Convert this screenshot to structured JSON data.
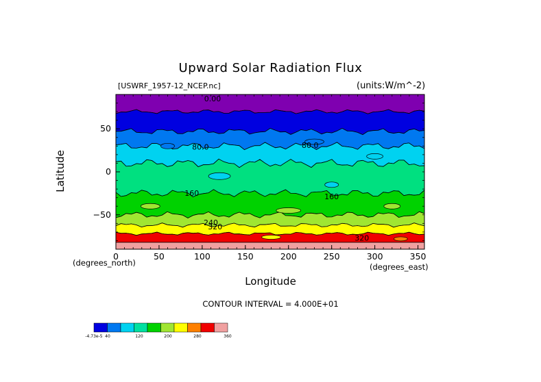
{
  "chart_data": {
    "type": "heatmap",
    "title": "Upward Solar Radiation Flux",
    "dataset_label": "[USWRF_1957-12_NCEP.nc]",
    "units_label": "(units:W/m^-2)",
    "xlabel": "Longitude",
    "ylabel": "Latitude",
    "x_units_label": "(degrees_east)",
    "y_units_label": "(degrees_north)",
    "xlim": [
      0,
      357.5
    ],
    "ylim": [
      -90,
      90
    ],
    "x_ticks": [
      0,
      50,
      100,
      150,
      200,
      250,
      300,
      350
    ],
    "y_ticks": [
      50,
      0,
      -50
    ],
    "y_tick_labels": [
      "50",
      "0",
      "−50"
    ],
    "contour_interval_text": "CONTOUR INTERVAL = 4.000E+01",
    "contour_labels": [
      "0.00",
      "80.0",
      "80.0",
      "160",
      "160",
      "240",
      "320",
      "320"
    ],
    "bands": [
      {
        "lat_min": 70,
        "lat_max": 90,
        "value_range": "0.00 and below",
        "color": "#7f00b0"
      },
      {
        "lat_min": 47,
        "lat_max": 70,
        "value_range": "-4.73e-5 to 40",
        "color": "#0000e0"
      },
      {
        "lat_min": 30,
        "lat_max": 47,
        "value_range": "40 to 80",
        "color": "#0078f0"
      },
      {
        "lat_min": 10,
        "lat_max": 30,
        "value_range": "80 to 120",
        "color": "#00d2f0"
      },
      {
        "lat_min": -25,
        "lat_max": 10,
        "value_range": "120 to 160",
        "color": "#00e080"
      },
      {
        "lat_min": -50,
        "lat_max": -25,
        "value_range": "160 to 200",
        "color": "#00d200"
      },
      {
        "lat_min": -62,
        "lat_max": -50,
        "value_range": "200 to 240",
        "color": "#a0e632"
      },
      {
        "lat_min": -72,
        "lat_max": -62,
        "value_range": "240 to 280",
        "color": "#ffff00"
      },
      {
        "lat_min": -82,
        "lat_max": -72,
        "value_range": "280 to 320",
        "color": "#f00000"
      },
      {
        "lat_min": -90,
        "lat_max": -82,
        "value_range": "320 and above",
        "color": "#f0a0a0"
      }
    ],
    "legend": {
      "colors": [
        "#0000e0",
        "#0078f0",
        "#00d2f0",
        "#00e0a0",
        "#00d200",
        "#a0e632",
        "#ffff00",
        "#ff8000",
        "#f00000",
        "#f0a0a0"
      ],
      "tick_labels": [
        "-4.73e-5",
        "40",
        "120",
        "200",
        "280",
        "360"
      ]
    }
  }
}
